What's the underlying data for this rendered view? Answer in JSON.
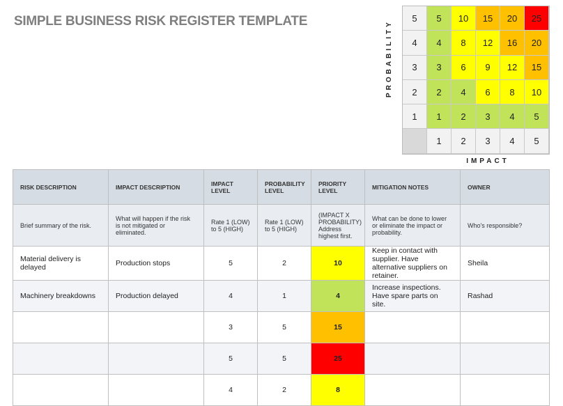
{
  "title": "SIMPLE BUSINESS RISK REGISTER TEMPLATE",
  "matrix": {
    "probability_label": "PROBABILITY",
    "impact_label": "IMPACT",
    "colors": {
      "green": "#c0e35a",
      "yellow": "#ffff00",
      "orange": "#ffc000",
      "red": "#ff0000"
    },
    "rows": [
      {
        "probability": "5",
        "cells": [
          {
            "v": "5",
            "c": "green"
          },
          {
            "v": "10",
            "c": "yellow"
          },
          {
            "v": "15",
            "c": "orange"
          },
          {
            "v": "20",
            "c": "orange"
          },
          {
            "v": "25",
            "c": "red"
          }
        ]
      },
      {
        "probability": "4",
        "cells": [
          {
            "v": "4",
            "c": "green"
          },
          {
            "v": "8",
            "c": "yellow"
          },
          {
            "v": "12",
            "c": "yellow"
          },
          {
            "v": "16",
            "c": "orange"
          },
          {
            "v": "20",
            "c": "orange"
          }
        ]
      },
      {
        "probability": "3",
        "cells": [
          {
            "v": "3",
            "c": "green"
          },
          {
            "v": "6",
            "c": "yellow"
          },
          {
            "v": "9",
            "c": "yellow"
          },
          {
            "v": "12",
            "c": "yellow"
          },
          {
            "v": "15",
            "c": "orange"
          }
        ]
      },
      {
        "probability": "2",
        "cells": [
          {
            "v": "2",
            "c": "green"
          },
          {
            "v": "4",
            "c": "green"
          },
          {
            "v": "6",
            "c": "yellow"
          },
          {
            "v": "8",
            "c": "yellow"
          },
          {
            "v": "10",
            "c": "yellow"
          }
        ]
      },
      {
        "probability": "1",
        "cells": [
          {
            "v": "1",
            "c": "green"
          },
          {
            "v": "2",
            "c": "green"
          },
          {
            "v": "3",
            "c": "green"
          },
          {
            "v": "4",
            "c": "green"
          },
          {
            "v": "5",
            "c": "green"
          }
        ]
      }
    ],
    "impact_values": [
      "1",
      "2",
      "3",
      "4",
      "5"
    ]
  },
  "table": {
    "headers": [
      "RISK DESCRIPTION",
      "IMPACT DESCRIPTION",
      "IMPACT LEVEL",
      "PROBABILITY LEVEL",
      "PRIORITY LEVEL",
      "MITIGATION NOTES",
      "OWNER"
    ],
    "descriptions": [
      "Brief summary of the risk.",
      "What will happen if the risk is not mitigated or eliminated.",
      "Rate 1 (LOW) to 5 (HIGH)",
      "Rate 1 (LOW) to 5 (HIGH)",
      "(IMPACT X PROBABILITY) Address highest first.",
      "What can be done to lower or eliminate the impact or probability.",
      "Who's responsible?"
    ],
    "rows": [
      {
        "risk": "Material delivery is delayed",
        "impact_desc": "Production stops",
        "impact": "5",
        "probability": "2",
        "priority": "10",
        "priority_color": "yellow",
        "mitigation": "Keep in contact with supplier. Have alternative suppliers on retainer.",
        "owner": "Sheila"
      },
      {
        "risk": "Machinery breakdowns",
        "impact_desc": "Production delayed",
        "impact": "4",
        "probability": "1",
        "priority": "4",
        "priority_color": "green",
        "mitigation": "Increase inspections. Have spare parts on site.",
        "owner": "Rashad"
      },
      {
        "risk": "",
        "impact_desc": "",
        "impact": "3",
        "probability": "5",
        "priority": "15",
        "priority_color": "orange",
        "mitigation": "",
        "owner": ""
      },
      {
        "risk": "",
        "impact_desc": "",
        "impact": "5",
        "probability": "5",
        "priority": "25",
        "priority_color": "red",
        "mitigation": "",
        "owner": ""
      },
      {
        "risk": "",
        "impact_desc": "",
        "impact": "4",
        "probability": "2",
        "priority": "8",
        "priority_color": "yellow",
        "mitigation": "",
        "owner": ""
      }
    ]
  }
}
